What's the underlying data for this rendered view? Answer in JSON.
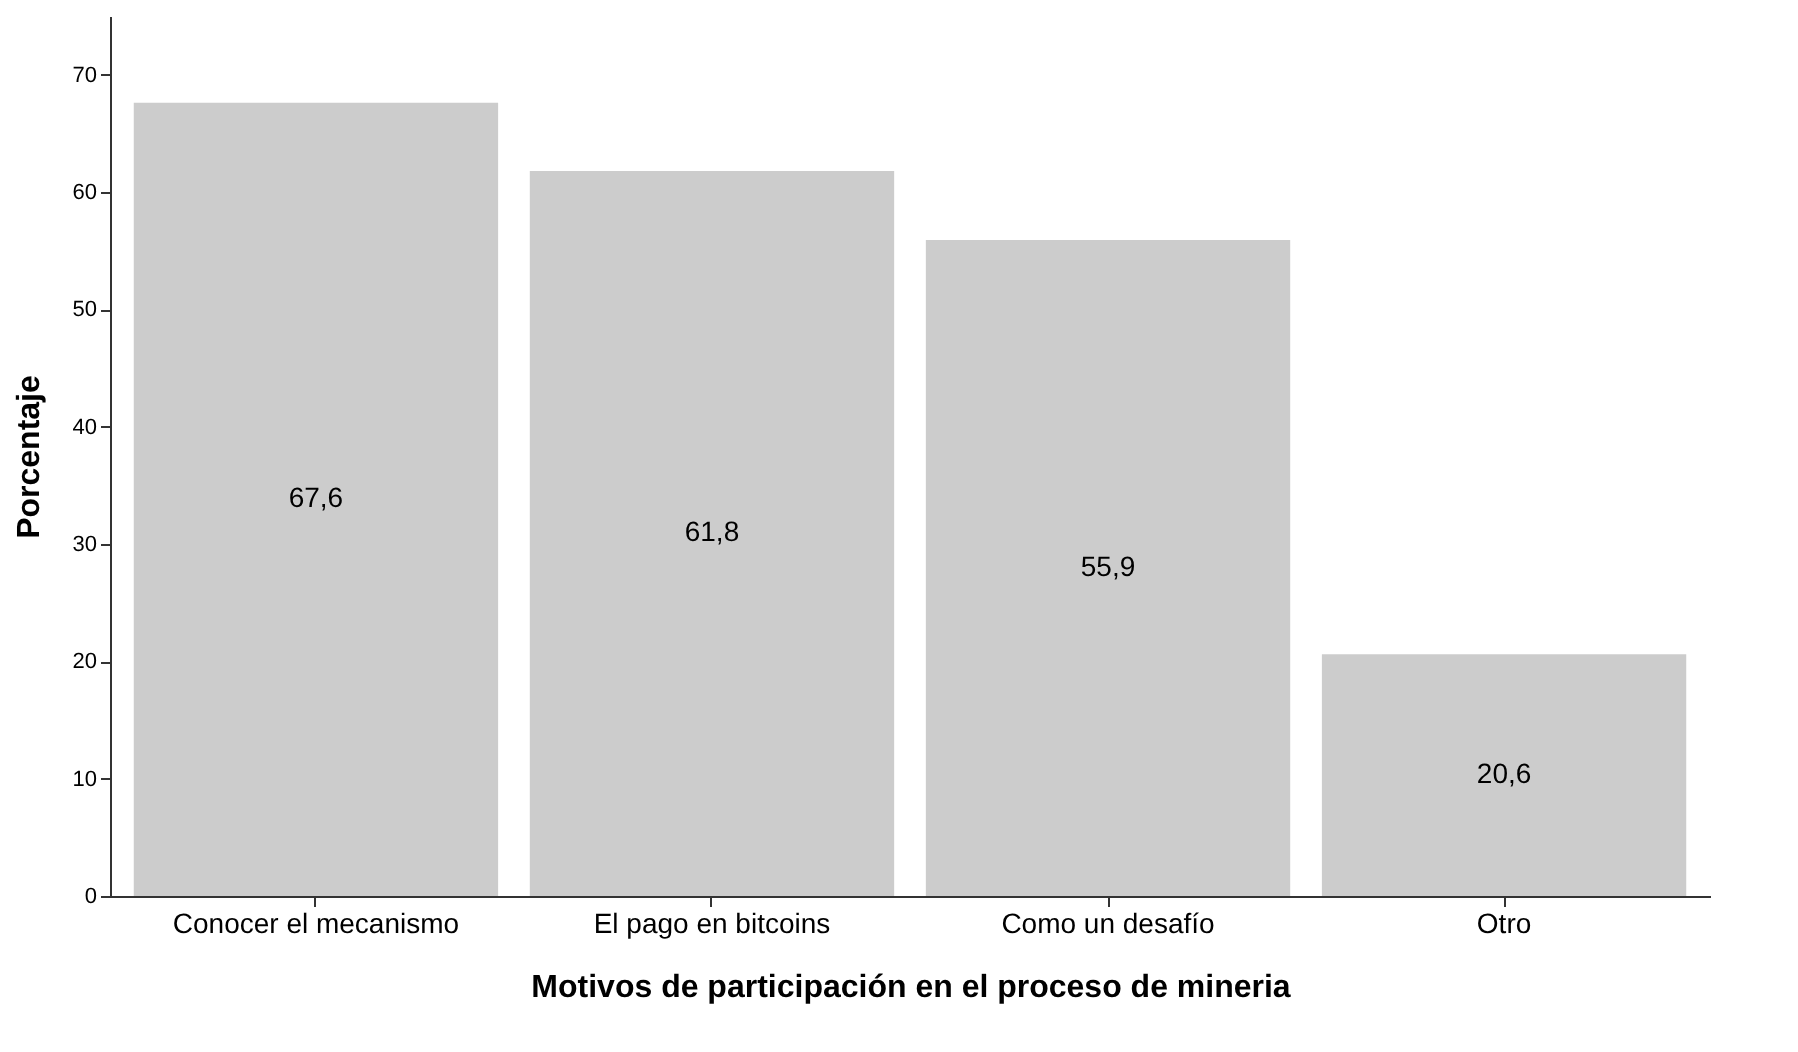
{
  "chart_data": {
    "type": "bar",
    "xlabel": "Motivos de participación en el proceso de mineria",
    "ylabel": "Porcentaje",
    "categories": [
      "Conocer el mecanismo",
      "El pago en bitcoins",
      "Como un desafío",
      "Otro"
    ],
    "values": [
      67.6,
      61.8,
      55.9,
      20.6
    ],
    "value_labels": [
      "67,6",
      "61,8",
      "55,9",
      "20,6"
    ],
    "color": "#cccccc",
    "ylim": [
      0,
      75
    ],
    "yticks": [
      0,
      10,
      20,
      30,
      40,
      50,
      60,
      70
    ],
    "grid": false
  }
}
